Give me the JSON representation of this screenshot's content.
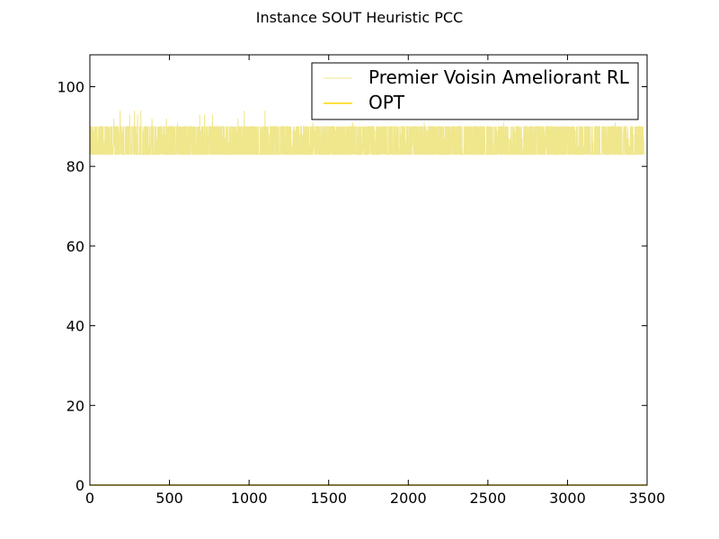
{
  "chart_data": {
    "type": "line",
    "title": "Instance SOUT Heuristic PCC",
    "xlabel": "",
    "ylabel": "",
    "xlim": [
      0,
      3500
    ],
    "ylim": [
      0,
      108
    ],
    "xticks": [
      0,
      500,
      1000,
      1500,
      2000,
      2500,
      3000,
      3500
    ],
    "yticks": [
      0,
      20,
      40,
      60,
      80,
      100
    ],
    "grid": false,
    "legend_position": "top-right",
    "series": [
      {
        "name": "Premier Voisin Ameliorant RL",
        "color": "#f0e68c",
        "x_range": [
          0,
          3480
        ],
        "num_points": 3481,
        "baseline_min": 83,
        "typical_max": 90,
        "peaks": [
          {
            "x": 150,
            "y": 92
          },
          {
            "x": 190,
            "y": 94
          },
          {
            "x": 250,
            "y": 93
          },
          {
            "x": 280,
            "y": 94
          },
          {
            "x": 300,
            "y": 93
          },
          {
            "x": 320,
            "y": 94
          },
          {
            "x": 390,
            "y": 92
          },
          {
            "x": 480,
            "y": 92
          },
          {
            "x": 550,
            "y": 91
          },
          {
            "x": 690,
            "y": 93
          },
          {
            "x": 720,
            "y": 93
          },
          {
            "x": 770,
            "y": 93
          },
          {
            "x": 930,
            "y": 92
          },
          {
            "x": 970,
            "y": 94
          },
          {
            "x": 1100,
            "y": 94
          },
          {
            "x": 1400,
            "y": 91
          },
          {
            "x": 1650,
            "y": 91
          },
          {
            "x": 2100,
            "y": 91
          },
          {
            "x": 2600,
            "y": 91
          },
          {
            "x": 3300,
            "y": 91
          }
        ]
      },
      {
        "name": "OPT",
        "color": "#ffd700",
        "x": [
          0,
          3500
        ],
        "y": [
          0,
          0
        ]
      }
    ]
  }
}
